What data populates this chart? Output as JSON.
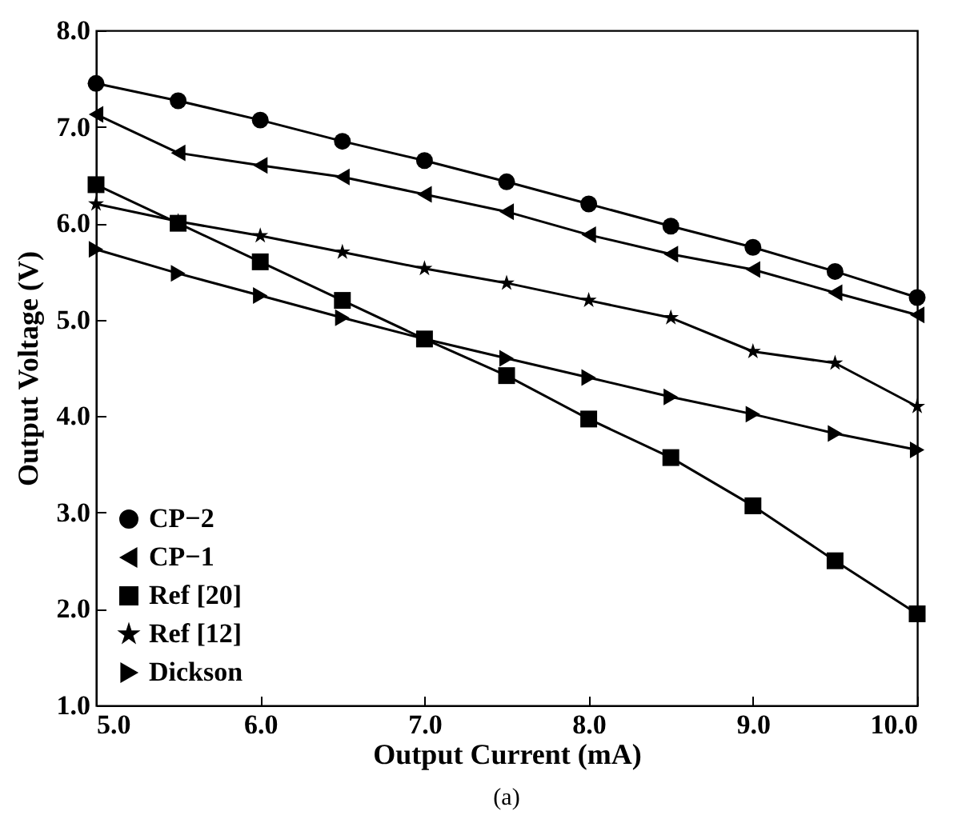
{
  "chart_data": {
    "type": "line",
    "xlabel": "Output Current (mA)",
    "ylabel": "Output Voltage (V)",
    "annotations": [
      "(a)"
    ],
    "x": [
      5.0,
      5.5,
      6.0,
      6.5,
      7.0,
      7.5,
      8.0,
      8.5,
      9.0,
      9.5,
      10.0
    ],
    "xlim": [
      5,
      10
    ],
    "ylim": [
      1,
      8
    ],
    "xticks": [
      {
        "value": 5,
        "label": "5.0"
      },
      {
        "value": 6,
        "label": "6.0"
      },
      {
        "value": 7,
        "label": "7.0"
      },
      {
        "value": 8,
        "label": "8.0"
      },
      {
        "value": 9,
        "label": "9.0"
      },
      {
        "value": 10,
        "label": "10.0"
      }
    ],
    "yticks": [
      {
        "value": 1,
        "label": "1.0"
      },
      {
        "value": 2,
        "label": "2.0"
      },
      {
        "value": 3,
        "label": "3.0"
      },
      {
        "value": 4,
        "label": "4.0"
      },
      {
        "value": 5,
        "label": "5.0"
      },
      {
        "value": 6,
        "label": "6.0"
      },
      {
        "value": 7,
        "label": "7.0"
      },
      {
        "value": 8,
        "label": "8.0"
      }
    ],
    "grid": false,
    "legend": "bottom left",
    "line_style": "solid",
    "series": [
      {
        "name": "CP−2",
        "color": "#000000",
        "marker": "circle",
        "values": [
          7.45,
          7.27,
          7.07,
          6.85,
          6.65,
          6.43,
          6.2,
          5.97,
          5.75,
          5.5,
          5.23
        ]
      },
      {
        "name": "CP−1",
        "color": "#000000",
        "marker": "triangle-left",
        "values": [
          7.13,
          6.73,
          6.6,
          6.48,
          6.3,
          6.12,
          5.88,
          5.68,
          5.52,
          5.28,
          5.05
        ]
      },
      {
        "name": "Ref [20]",
        "color": "#000000",
        "marker": "square",
        "values": [
          6.4,
          6.0,
          5.6,
          5.2,
          4.8,
          4.42,
          3.97,
          3.57,
          3.07,
          2.5,
          1.95
        ]
      },
      {
        "name": "Ref [12]",
        "color": "#000000",
        "marker": "star",
        "values": [
          6.2,
          6.02,
          5.87,
          5.7,
          5.53,
          5.38,
          5.2,
          5.02,
          4.67,
          4.55,
          4.1
        ]
      },
      {
        "name": "Dickson",
        "color": "#000000",
        "marker": "triangle-right",
        "values": [
          5.73,
          5.48,
          5.25,
          5.02,
          4.8,
          4.6,
          4.4,
          4.2,
          4.02,
          3.82,
          3.65
        ]
      }
    ]
  }
}
